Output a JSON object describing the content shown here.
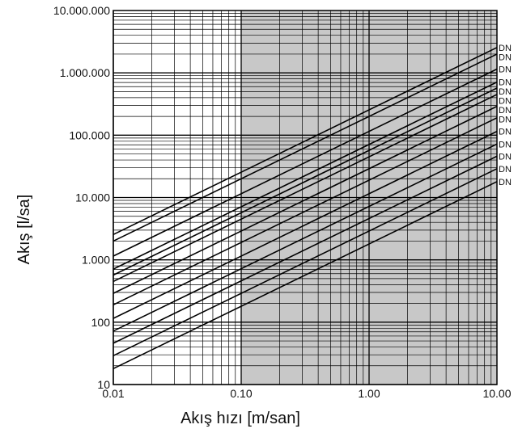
{
  "chart_data": {
    "type": "line",
    "xlabel": "Akış hızı [m/san]",
    "ylabel": "Akış [l/sa]",
    "xscale": "log",
    "yscale": "log",
    "xlim": [
      0.01,
      10
    ],
    "ylim": [
      10,
      10000000
    ],
    "x_ticks": [
      0.01,
      0.1,
      1,
      10
    ],
    "x_tick_labels": [
      "0.01",
      "0.10",
      "1.00",
      "10.00"
    ],
    "y_ticks": [
      10,
      100,
      1000,
      10000,
      100000,
      1000000,
      10000000
    ],
    "y_tick_labels": [
      "10",
      "100",
      "1.000",
      "10.000",
      "100.000",
      "1.000.000",
      "10.000.000"
    ],
    "grid": true,
    "shaded_region": {
      "x_from": 0.1,
      "x_to": 10,
      "color": "#c8c8c8"
    },
    "line_color": "#000000",
    "series": [
      {
        "name": "DN",
        "x": [
          0.01,
          10
        ],
        "values": [
          2550,
          2550000
        ]
      },
      {
        "name": "DN",
        "x": [
          0.01,
          10
        ],
        "values": [
          2000,
          2000000
        ]
      },
      {
        "name": "DN",
        "x": [
          0.01,
          10
        ],
        "values": [
          1150,
          1150000
        ]
      },
      {
        "name": "DN",
        "x": [
          0.01,
          10
        ],
        "values": [
          710,
          710000
        ]
      },
      {
        "name": "DN",
        "x": [
          0.01,
          10
        ],
        "values": [
          570,
          570000
        ]
      },
      {
        "name": "DN",
        "x": [
          0.01,
          10
        ],
        "values": [
          450,
          450000
        ]
      },
      {
        "name": "DN",
        "x": [
          0.01,
          10
        ],
        "values": [
          290,
          290000
        ]
      },
      {
        "name": "DN",
        "x": [
          0.01,
          10
        ],
        "values": [
          190,
          190000
        ]
      },
      {
        "name": "DN",
        "x": [
          0.01,
          10
        ],
        "values": [
          115,
          115000
        ]
      },
      {
        "name": "DN",
        "x": [
          0.01,
          10
        ],
        "values": [
          72,
          72000
        ]
      },
      {
        "name": "DN",
        "x": [
          0.01,
          10
        ],
        "values": [
          46,
          46000
        ]
      },
      {
        "name": "DN",
        "x": [
          0.01,
          10
        ],
        "values": [
          29,
          29000
        ]
      },
      {
        "name": "DN",
        "x": [
          0.01,
          10
        ],
        "values": [
          18,
          18000
        ]
      }
    ]
  }
}
